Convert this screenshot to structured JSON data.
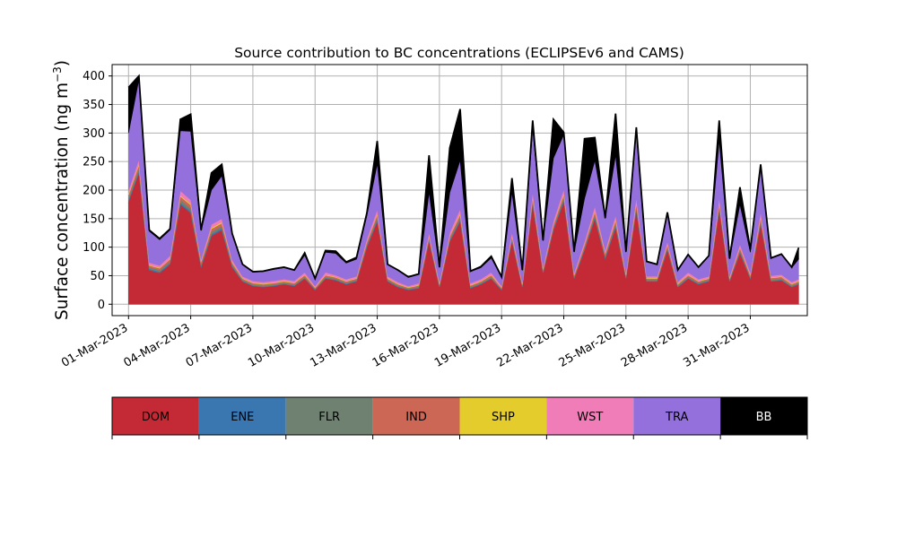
{
  "chart_data": {
    "type": "area",
    "stacked": true,
    "title": "Source contribution to BC concentrations (ECLIPSEv6 and CAMS)",
    "ylabel": "Surface concentration (ng m",
    "ylabel_sup": "−3",
    "ylabel_end": ")",
    "xlabel": "",
    "ylim": [
      -20,
      420
    ],
    "xlim": [
      "2023-02-28T05:00",
      "2023-04-02T18:00"
    ],
    "yticks": [
      0,
      50,
      100,
      150,
      200,
      250,
      300,
      350,
      400
    ],
    "xtick_labels": [
      "01-Mar-2023",
      "04-Mar-2023",
      "07-Mar-2023",
      "10-Mar-2023",
      "13-Mar-2023",
      "16-Mar-2023",
      "19-Mar-2023",
      "22-Mar-2023",
      "25-Mar-2023",
      "28-Mar-2023",
      "31-Mar-2023"
    ],
    "xtick_dates": [
      "2023-03-01",
      "2023-03-04",
      "2023-03-07",
      "2023-03-10",
      "2023-03-13",
      "2023-03-16",
      "2023-03-19",
      "2023-03-22",
      "2023-03-25",
      "2023-03-28",
      "2023-03-31"
    ],
    "grid": true,
    "legend_position": "bottom",
    "series": [
      {
        "name": "DOM",
        "color": "#c42a35"
      },
      {
        "name": "ENE",
        "color": "#3a77b0"
      },
      {
        "name": "FLR",
        "color": "#6f8271"
      },
      {
        "name": "IND",
        "color": "#cc6655"
      },
      {
        "name": "SHP",
        "color": "#e4cc2c"
      },
      {
        "name": "WST",
        "color": "#f07cb8"
      },
      {
        "name": "TRA",
        "color": "#9370db"
      },
      {
        "name": "BB",
        "color": "#000000"
      }
    ],
    "x": [
      "2023-03-01T00:00",
      "2023-03-01T12:00",
      "2023-03-02T00:00",
      "2023-03-02T12:00",
      "2023-03-03T00:00",
      "2023-03-03T12:00",
      "2023-03-04T00:00",
      "2023-03-04T12:00",
      "2023-03-05T00:00",
      "2023-03-05T12:00",
      "2023-03-06T00:00",
      "2023-03-06T12:00",
      "2023-03-07T00:00",
      "2023-03-07T12:00",
      "2023-03-08T00:00",
      "2023-03-08T12:00",
      "2023-03-09T00:00",
      "2023-03-09T12:00",
      "2023-03-10T00:00",
      "2023-03-10T12:00",
      "2023-03-11T00:00",
      "2023-03-11T12:00",
      "2023-03-12T00:00",
      "2023-03-12T12:00",
      "2023-03-13T00:00",
      "2023-03-13T12:00",
      "2023-03-14T00:00",
      "2023-03-14T12:00",
      "2023-03-15T00:00",
      "2023-03-15T12:00",
      "2023-03-16T00:00",
      "2023-03-16T12:00",
      "2023-03-17T00:00",
      "2023-03-17T12:00",
      "2023-03-18T00:00",
      "2023-03-18T12:00",
      "2023-03-19T00:00",
      "2023-03-19T12:00",
      "2023-03-20T00:00",
      "2023-03-20T12:00",
      "2023-03-21T00:00",
      "2023-03-21T12:00",
      "2023-03-22T00:00",
      "2023-03-22T12:00",
      "2023-03-23T00:00",
      "2023-03-23T12:00",
      "2023-03-24T00:00",
      "2023-03-24T12:00",
      "2023-03-25T00:00",
      "2023-03-25T12:00",
      "2023-03-26T00:00",
      "2023-03-26T12:00",
      "2023-03-27T00:00",
      "2023-03-27T12:00",
      "2023-03-28T00:00",
      "2023-03-28T12:00",
      "2023-03-29T00:00",
      "2023-03-29T12:00",
      "2023-03-30T00:00",
      "2023-03-30T12:00",
      "2023-03-31T00:00",
      "2023-03-31T12:00",
      "2023-04-01T00:00",
      "2023-04-01T12:00",
      "2023-04-02T00:00",
      "2023-04-02T08:00"
    ],
    "values": {
      "DOM": [
        180,
        230,
        60,
        55,
        70,
        175,
        160,
        65,
        120,
        130,
        65,
        40,
        32,
        30,
        32,
        35,
        32,
        45,
        25,
        45,
        42,
        35,
        40,
        100,
        145,
        40,
        30,
        25,
        28,
        110,
        30,
        110,
        145,
        28,
        35,
        45,
        25,
        110,
        30,
        175,
        55,
        130,
        180,
        45,
        95,
        150,
        80,
        135,
        45,
        165,
        40,
        40,
        95,
        30,
        45,
        35,
        40,
        165,
        40,
        90,
        45,
        140,
        40,
        42,
        30,
        35
      ],
      "ENE": [
        3,
        3,
        2,
        2,
        2,
        3,
        3,
        2,
        3,
        3,
        2,
        1,
        1,
        1,
        1,
        1,
        1,
        1,
        1,
        1,
        1,
        1,
        1,
        2,
        3,
        1,
        1,
        1,
        1,
        2,
        1,
        2,
        3,
        1,
        1,
        1,
        1,
        2,
        1,
        3,
        1,
        2,
        3,
        1,
        2,
        3,
        2,
        3,
        1,
        3,
        1,
        1,
        2,
        1,
        1,
        1,
        1,
        3,
        1,
        2,
        1,
        3,
        1,
        1,
        1,
        1
      ],
      "FLR": [
        4,
        5,
        3,
        3,
        3,
        5,
        5,
        3,
        4,
        4,
        3,
        2,
        2,
        2,
        2,
        2,
        2,
        2,
        1,
        2,
        2,
        2,
        2,
        3,
        4,
        2,
        2,
        1,
        2,
        3,
        2,
        3,
        4,
        2,
        2,
        2,
        1,
        3,
        2,
        4,
        2,
        3,
        4,
        2,
        3,
        4,
        3,
        4,
        2,
        4,
        2,
        2,
        3,
        2,
        2,
        2,
        2,
        4,
        2,
        3,
        2,
        4,
        2,
        2,
        2,
        2
      ],
      "IND": [
        5,
        6,
        3,
        3,
        4,
        6,
        6,
        4,
        5,
        5,
        3,
        2,
        2,
        2,
        2,
        2,
        2,
        3,
        2,
        3,
        2,
        2,
        2,
        4,
        5,
        2,
        2,
        2,
        2,
        4,
        2,
        4,
        5,
        2,
        2,
        3,
        2,
        4,
        2,
        5,
        3,
        4,
        5,
        3,
        4,
        5,
        4,
        5,
        3,
        5,
        2,
        2,
        4,
        2,
        3,
        2,
        2,
        5,
        2,
        4,
        3,
        5,
        3,
        3,
        2,
        2
      ],
      "SHP": [
        2,
        2,
        1,
        1,
        1,
        2,
        2,
        1,
        2,
        2,
        1,
        1,
        1,
        1,
        1,
        1,
        1,
        1,
        1,
        1,
        1,
        1,
        1,
        1,
        2,
        1,
        1,
        1,
        1,
        1,
        1,
        1,
        2,
        1,
        1,
        1,
        1,
        1,
        1,
        2,
        1,
        1,
        2,
        1,
        1,
        2,
        1,
        2,
        1,
        2,
        1,
        1,
        1,
        1,
        1,
        1,
        1,
        2,
        1,
        1,
        1,
        2,
        1,
        1,
        1,
        1
      ],
      "WST": [
        6,
        8,
        4,
        4,
        5,
        8,
        7,
        4,
        6,
        6,
        4,
        3,
        3,
        3,
        3,
        3,
        3,
        4,
        2,
        4,
        3,
        3,
        3,
        5,
        7,
        3,
        3,
        2,
        3,
        6,
        3,
        6,
        8,
        3,
        3,
        4,
        2,
        6,
        3,
        8,
        4,
        6,
        8,
        4,
        5,
        8,
        5,
        7,
        4,
        8,
        3,
        3,
        5,
        3,
        4,
        3,
        3,
        8,
        3,
        5,
        4,
        8,
        3,
        3,
        3,
        3
      ],
      "TRA": [
        100,
        140,
        55,
        45,
        45,
        105,
        120,
        50,
        60,
        75,
        45,
        20,
        15,
        18,
        20,
        20,
        18,
        30,
        12,
        35,
        38,
        28,
        30,
        40,
        80,
        20,
        20,
        15,
        15,
        70,
        25,
        70,
        85,
        20,
        20,
        25,
        15,
        70,
        20,
        110,
        45,
        110,
        95,
        35,
        75,
        80,
        55,
        105,
        35,
        115,
        25,
        20,
        50,
        20,
        30,
        20,
        35,
        100,
        30,
        70,
        35,
        80,
        30,
        35,
        25,
        35
      ],
      "BB": [
        80,
        6,
        2,
        2,
        2,
        20,
        30,
        1,
        30,
        20,
        1,
        1,
        1,
        1,
        1,
        1,
        1,
        4,
        1,
        3,
        4,
        2,
        3,
        5,
        40,
        1,
        1,
        1,
        1,
        65,
        1,
        78,
        90,
        1,
        2,
        3,
        1,
        25,
        1,
        15,
        1,
        68,
        4,
        1,
        105,
        40,
        1,
        73,
        1,
        8,
        1,
        1,
        1,
        1,
        1,
        1,
        1,
        35,
        1,
        30,
        5,
        3,
        1,
        1,
        1,
        20
      ]
    }
  }
}
